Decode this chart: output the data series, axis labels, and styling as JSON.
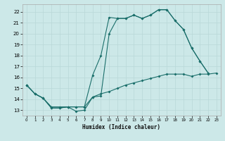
{
  "xlabel": "Humidex (Indice chaleur)",
  "bg_color": "#cce8e8",
  "line_color": "#1a6e6a",
  "xlim": [
    -0.5,
    23.5
  ],
  "ylim": [
    12.5,
    22.7
  ],
  "xticks": [
    0,
    1,
    2,
    3,
    4,
    5,
    6,
    7,
    8,
    9,
    10,
    11,
    12,
    13,
    14,
    15,
    16,
    17,
    18,
    19,
    20,
    21,
    22,
    23
  ],
  "yticks": [
    13,
    14,
    15,
    16,
    17,
    18,
    19,
    20,
    21,
    22
  ],
  "line1_x": [
    0,
    1,
    2,
    3,
    4,
    5,
    6,
    7,
    8,
    9,
    10,
    11,
    12,
    13,
    14,
    15,
    16,
    17,
    18,
    19,
    20,
    21,
    22
  ],
  "line1_y": [
    15.3,
    14.5,
    14.1,
    13.2,
    13.2,
    13.3,
    12.9,
    13.0,
    14.2,
    14.3,
    20.0,
    21.4,
    21.4,
    21.7,
    21.4,
    21.7,
    22.2,
    22.2,
    21.2,
    20.4,
    18.7,
    17.5,
    16.4
  ],
  "line2_x": [
    0,
    1,
    2,
    3,
    4,
    5,
    6,
    7,
    8,
    9,
    10,
    11,
    12,
    13,
    14,
    15,
    16,
    17,
    18,
    19,
    20,
    21,
    22
  ],
  "line2_y": [
    15.3,
    14.5,
    14.1,
    13.2,
    13.2,
    13.3,
    13.3,
    13.3,
    16.2,
    18.0,
    21.5,
    21.4,
    21.4,
    21.7,
    21.4,
    21.7,
    22.2,
    22.2,
    21.2,
    20.4,
    18.7,
    17.5,
    16.4
  ],
  "line3_x": [
    0,
    1,
    2,
    3,
    4,
    5,
    6,
    7,
    8,
    9,
    10,
    11,
    12,
    13,
    14,
    15,
    16,
    17,
    18,
    19,
    20,
    21,
    22,
    23
  ],
  "line3_y": [
    15.3,
    14.5,
    14.1,
    13.3,
    13.3,
    13.3,
    13.3,
    13.3,
    14.2,
    14.5,
    14.7,
    15.0,
    15.3,
    15.5,
    15.7,
    15.9,
    16.1,
    16.3,
    16.3,
    16.3,
    16.1,
    16.3,
    16.3,
    16.4
  ]
}
